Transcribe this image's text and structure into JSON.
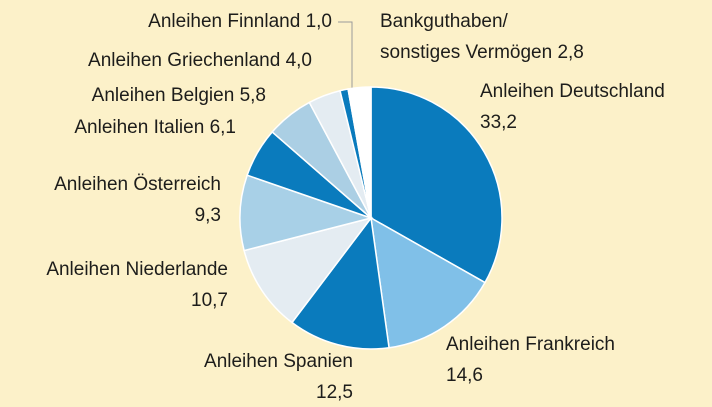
{
  "chart_data": {
    "type": "pie",
    "categories": [
      "Anleihen Deutschland",
      "Anleihen Frankreich",
      "Anleihen Spanien",
      "Anleihen Niederlande",
      "Anleihen Österreich",
      "Anleihen Italien",
      "Anleihen Belgien",
      "Anleihen Griechenland",
      "Anleihen Finnland",
      "Bankguthaben/\nsonstiges Vermögen"
    ],
    "values": [
      33.2,
      14.6,
      12.5,
      10.7,
      9.3,
      6.1,
      5.8,
      4.0,
      1.0,
      2.8
    ],
    "value_labels": [
      "33,2",
      "14,6",
      "12,5",
      "10,7",
      "9,3",
      "6,1",
      "5,8",
      "4,0",
      "1,0",
      "2,8"
    ],
    "colors": [
      "#0a7bbd",
      "#80c0e8",
      "#0a7bbd",
      "#e4ecf2",
      "#a8d0e7",
      "#0a7bbd",
      "#abcfe4",
      "#e4ecf2",
      "#0a7bbd",
      "#ffffff"
    ]
  }
}
